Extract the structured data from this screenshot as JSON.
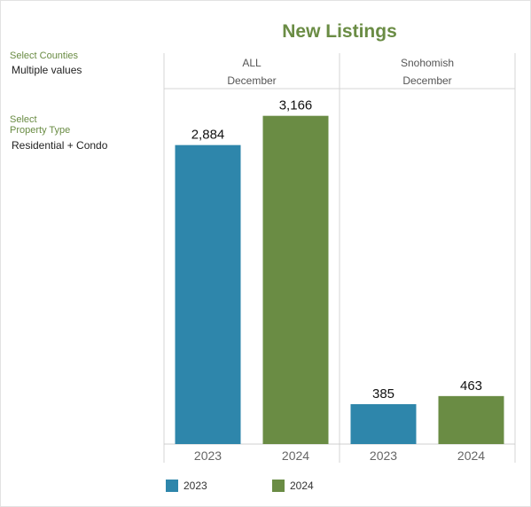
{
  "title": "New Listings",
  "filters": [
    {
      "label": "Select Counties",
      "value": "Multiple values"
    },
    {
      "label": "Select\nProperty Type",
      "value": "Residential + Condo"
    }
  ],
  "colors": {
    "series_2023": "#2e86ab",
    "series_2024": "#6a8c44",
    "accent": "#6a8c44"
  },
  "chart_data": {
    "type": "bar",
    "title": "New Listings",
    "ylim": [
      0,
      3300
    ],
    "grid": false,
    "legend_position": "bottom",
    "panels": [
      {
        "region": "ALL",
        "month": "December",
        "categories": [
          "2023",
          "2024"
        ],
        "values": [
          2884,
          3166
        ],
        "labels": [
          "2,884",
          "3,166"
        ]
      },
      {
        "region": "Snohomish",
        "month": "December",
        "categories": [
          "2023",
          "2024"
        ],
        "values": [
          385,
          463
        ],
        "labels": [
          "385",
          "463"
        ]
      }
    ],
    "legend": [
      "2023",
      "2024"
    ]
  }
}
